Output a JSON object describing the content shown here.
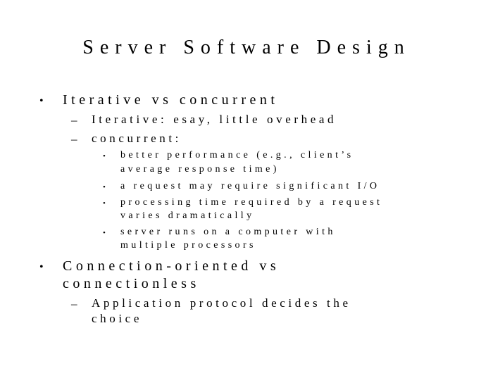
{
  "slide": {
    "title": "Server Software Design",
    "bullet_symbol": "•",
    "dash_symbol": "–",
    "points": [
      {
        "text": "Iterative vs concurrent",
        "subpoints": [
          {
            "text": "Iterative: esay, little overhead"
          },
          {
            "text": "concurrent:",
            "items": [
              {
                "lines": [
                  "better performance (e.g., client’s",
                  "average response time)"
                ]
              },
              {
                "lines": [
                  "a request may require significant I/O"
                ]
              },
              {
                "lines": [
                  "processing time required by a request",
                  "varies dramatically"
                ]
              },
              {
                "lines": [
                  "server runs on a computer with",
                  "multiple processors"
                ]
              }
            ]
          }
        ]
      },
      {
        "lines": [
          "Connection-oriented vs",
          "connectionless"
        ],
        "subpoints": [
          {
            "lines": [
              "Application protocol decides the",
              "choice"
            ]
          }
        ]
      }
    ]
  }
}
